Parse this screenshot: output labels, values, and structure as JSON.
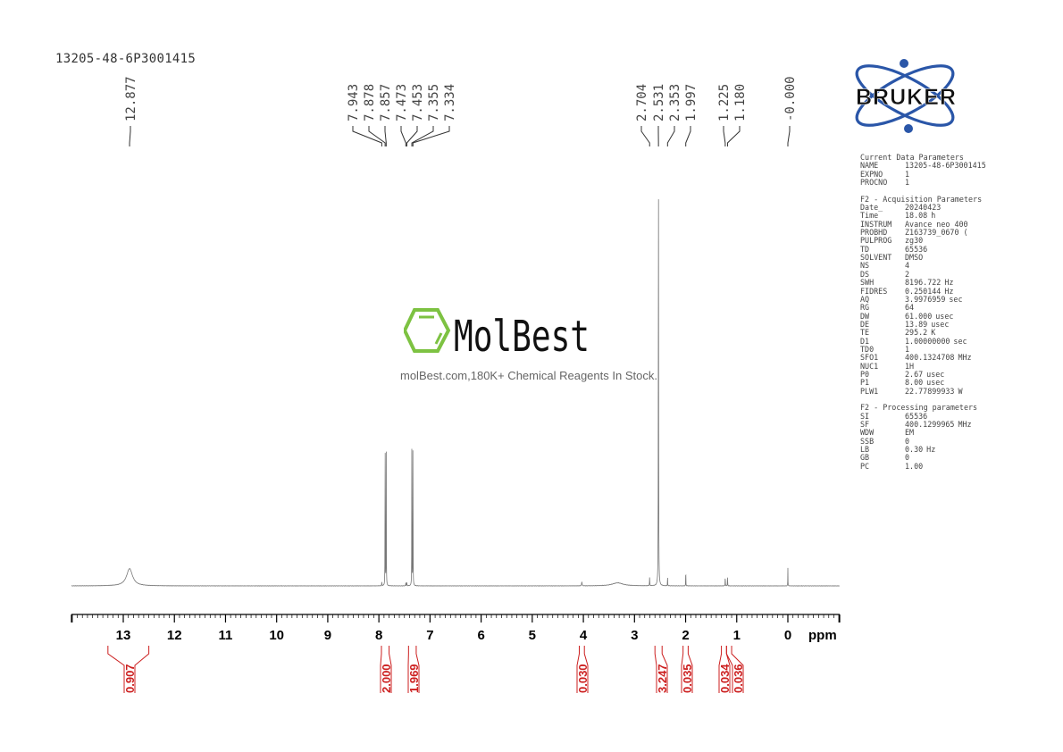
{
  "sample_name": "13205-48-6P3001415",
  "brand": "BRUKER",
  "watermark": {
    "name": "MolBest",
    "tagline": "molBest.com,180K+ Chemical Reagents In Stock."
  },
  "colors": {
    "spectrum": "#777777",
    "integral": "#cc1f1f",
    "axis": "#000000",
    "bruker_blue": "#2a56a8"
  },
  "parameters": {
    "sections": [
      {
        "title": "Current Data Parameters",
        "rows": [
          {
            "name": "NAME",
            "value": "13205-48-6P3001415",
            "unit": ""
          },
          {
            "name": "EXPNO",
            "value": "1",
            "unit": ""
          },
          {
            "name": "PROCNO",
            "value": "1",
            "unit": ""
          }
        ]
      },
      {
        "title": "F2 - Acquisition Parameters",
        "rows": [
          {
            "name": "Date_",
            "value": "20240423",
            "unit": ""
          },
          {
            "name": "Time",
            "value": "18.08",
            "unit": "h"
          },
          {
            "name": "INSTRUM",
            "value": "Avance neo 400",
            "unit": ""
          },
          {
            "name": "PROBHD",
            "value": "Z163739_0670 (",
            "unit": ""
          },
          {
            "name": "PULPROG",
            "value": "zg30",
            "unit": ""
          },
          {
            "name": "TD",
            "value": "65536",
            "unit": ""
          },
          {
            "name": "SOLVENT",
            "value": "DMSO",
            "unit": ""
          },
          {
            "name": "NS",
            "value": "4",
            "unit": ""
          },
          {
            "name": "DS",
            "value": "2",
            "unit": ""
          },
          {
            "name": "SWH",
            "value": "8196.722",
            "unit": "Hz"
          },
          {
            "name": "FIDRES",
            "value": "0.250144",
            "unit": "Hz"
          },
          {
            "name": "AQ",
            "value": "3.9976959",
            "unit": "sec"
          },
          {
            "name": "RG",
            "value": "64",
            "unit": ""
          },
          {
            "name": "DW",
            "value": "61.000",
            "unit": "usec"
          },
          {
            "name": "DE",
            "value": "13.89",
            "unit": "usec"
          },
          {
            "name": "TE",
            "value": "295.2",
            "unit": "K"
          },
          {
            "name": "D1",
            "value": "1.00000000",
            "unit": "sec"
          },
          {
            "name": "TD0",
            "value": "1",
            "unit": ""
          },
          {
            "name": "SFO1",
            "value": "400.1324708",
            "unit": "MHz"
          },
          {
            "name": "NUC1",
            "value": "1H",
            "unit": ""
          },
          {
            "name": "P0",
            "value": "2.67",
            "unit": "usec"
          },
          {
            "name": "P1",
            "value": "8.00",
            "unit": "usec"
          },
          {
            "name": "PLW1",
            "value": "22.77899933",
            "unit": "W"
          }
        ]
      },
      {
        "title": "F2 - Processing parameters",
        "rows": [
          {
            "name": "SI",
            "value": "65536",
            "unit": ""
          },
          {
            "name": "SF",
            "value": "400.1299965",
            "unit": "MHz"
          },
          {
            "name": "WDW",
            "value": "EM",
            "unit": ""
          },
          {
            "name": "SSB",
            "value": "0",
            "unit": ""
          },
          {
            "name": "LB",
            "value": "0.30",
            "unit": "Hz"
          },
          {
            "name": "GB",
            "value": "0",
            "unit": ""
          },
          {
            "name": "PC",
            "value": "1.00",
            "unit": ""
          }
        ]
      }
    ]
  },
  "chart_data": {
    "type": "line",
    "xlabel": "ppm",
    "xlim": [
      14,
      -1
    ],
    "x_reversed": true,
    "xticks": [
      "13",
      "12",
      "11",
      "10",
      "9",
      "8",
      "7",
      "6",
      "5",
      "4",
      "3",
      "2",
      "1",
      "0"
    ],
    "peak_labels": [
      "12.877",
      "7.943",
      "7.878",
      "7.857",
      "7.473",
      "7.453",
      "7.355",
      "7.334",
      "2.704",
      "2.531",
      "2.353",
      "1.997",
      "1.225",
      "1.180",
      "-0.000"
    ],
    "peaks": [
      {
        "ppm": 12.877,
        "intensity": 0.04,
        "width": 0.14
      },
      {
        "ppm": 7.943,
        "intensity": 0.008,
        "width": 0.006
      },
      {
        "ppm": 7.878,
        "intensity": 0.41,
        "width": 0.004
      },
      {
        "ppm": 7.857,
        "intensity": 0.41,
        "width": 0.004
      },
      {
        "ppm": 7.473,
        "intensity": 0.008,
        "width": 0.006
      },
      {
        "ppm": 7.453,
        "intensity": 0.008,
        "width": 0.006
      },
      {
        "ppm": 7.355,
        "intensity": 0.41,
        "width": 0.004
      },
      {
        "ppm": 7.334,
        "intensity": 0.41,
        "width": 0.004
      },
      {
        "ppm": 4.03,
        "intensity": 0.01,
        "width": 0.01
      },
      {
        "ppm": 3.33,
        "intensity": 0.007,
        "width": 0.25
      },
      {
        "ppm": 2.704,
        "intensity": 0.02,
        "width": 0.006
      },
      {
        "ppm": 2.531,
        "intensity": 1.0,
        "width": 0.006
      },
      {
        "ppm": 2.353,
        "intensity": 0.025,
        "width": 0.004
      },
      {
        "ppm": 1.997,
        "intensity": 0.042,
        "width": 0.004
      },
      {
        "ppm": 1.225,
        "intensity": 0.022,
        "width": 0.005
      },
      {
        "ppm": 1.18,
        "intensity": 0.022,
        "width": 0.005
      },
      {
        "ppm": 0.0,
        "intensity": 0.042,
        "width": 0.004
      }
    ],
    "integrals": [
      {
        "from": 13.3,
        "to": 12.5,
        "value": "0.907"
      },
      {
        "from": 7.95,
        "to": 7.8,
        "value": "2.000"
      },
      {
        "from": 7.42,
        "to": 7.27,
        "value": "1.969"
      },
      {
        "from": 4.08,
        "to": 3.98,
        "value": "0.030"
      },
      {
        "from": 2.6,
        "to": 2.46,
        "value": "3.247"
      },
      {
        "from": 2.05,
        "to": 1.95,
        "value": "0.035"
      },
      {
        "from": 1.3,
        "to": 1.2,
        "value": "0.034"
      },
      {
        "from": 1.2,
        "to": 1.1,
        "value": "0.036"
      }
    ]
  }
}
